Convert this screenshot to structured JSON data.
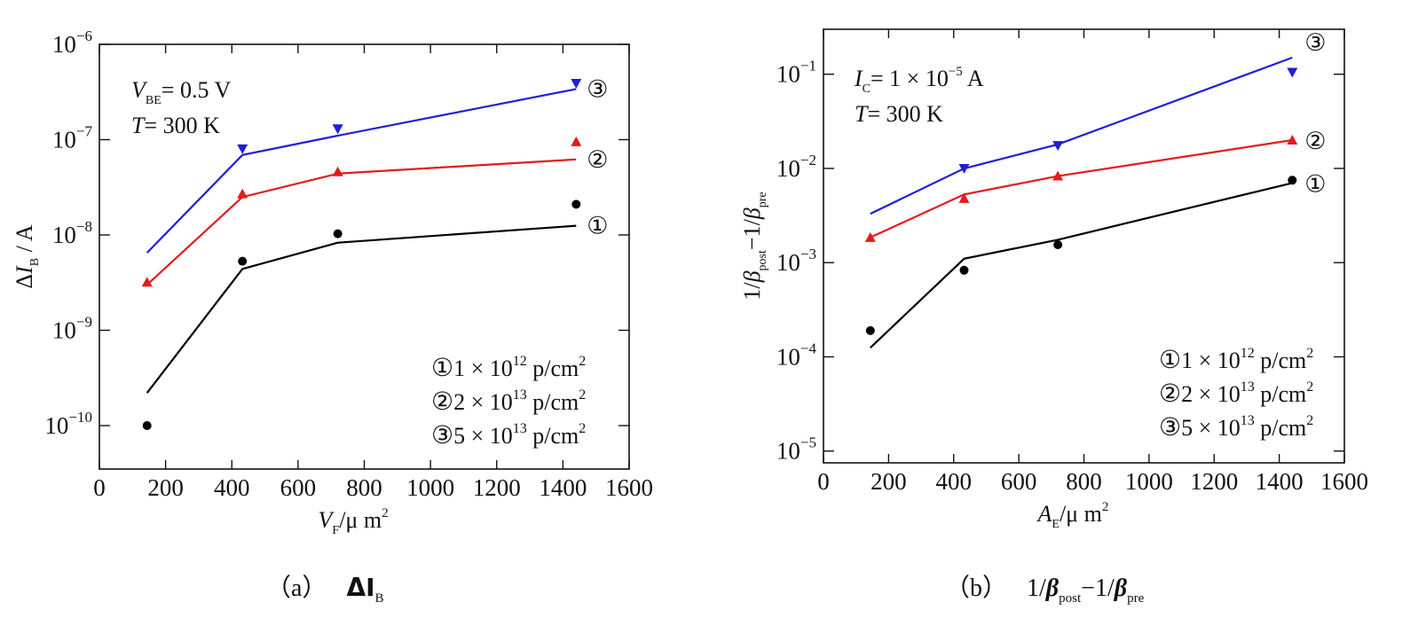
{
  "chart_data": [
    {
      "type": "scatter",
      "caption": {
        "tag": "（a）",
        "text": "ΔI",
        "sub": "B"
      },
      "xlabel": {
        "main": "V",
        "sub": "F",
        "unit": "/μ m",
        "sup": "2"
      },
      "ylabel": {
        "delta": "Δ",
        "main": "I",
        "sub": "B",
        "unit": " / A"
      },
      "x_ticks": [
        "0",
        "200",
        "400",
        "600",
        "800",
        "1000",
        "1200",
        "1400",
        "1600"
      ],
      "y_ticks": [
        {
          "base": "10",
          "exp": "−10"
        },
        {
          "base": "10",
          "exp": "−9"
        },
        {
          "base": "10",
          "exp": "−8"
        },
        {
          "base": "10",
          "exp": "−7"
        },
        {
          "base": "10",
          "exp": "−6"
        }
      ],
      "xlim": [
        0,
        1600
      ],
      "ylim": [
        3.5e-11,
        1e-06
      ],
      "yscale": "log",
      "conditions": [
        {
          "sym": "V",
          "sub": "BE",
          "rest": "= 0.5 V"
        },
        {
          "sym": "T",
          "sub": "",
          "rest": "= 300 K"
        }
      ],
      "legend": [
        {
          "marker": "①",
          "coef": "1 × 10",
          "exp": "12",
          "unit": " p/cm",
          "sup": "2"
        },
        {
          "marker": "②",
          "coef": "2 × 10",
          "exp": "13",
          "unit": " p/cm",
          "sup": "2"
        },
        {
          "marker": "③",
          "coef": "5 × 10",
          "exp": "13",
          "unit": " p/cm",
          "sup": "2"
        }
      ],
      "legend_position": "bottom-right",
      "series": [
        {
          "name": "①",
          "label": "①",
          "color": "#000000",
          "marker": "circle",
          "x": [
            144,
            432,
            720,
            1440
          ],
          "points": [
            1e-10,
            5.3e-09,
            1.03e-08,
            2.1e-08
          ],
          "fit": [
            2.2e-10,
            4.4e-09,
            8.3e-09,
            1.25e-08
          ]
        },
        {
          "name": "②",
          "label": "②",
          "color": "#e41a1c",
          "marker": "triangle-up",
          "x": [
            144,
            432,
            720,
            1440
          ],
          "points": [
            3.2e-09,
            2.7e-08,
            4.6e-08,
            9.5e-08
          ],
          "fit": [
            3e-09,
            2.5e-08,
            4.4e-08,
            6.2e-08
          ]
        },
        {
          "name": "③",
          "label": "③",
          "color": "#1f1fd6",
          "marker": "triangle-down",
          "x": [
            144,
            432,
            720,
            1440
          ],
          "points": [
            null,
            8e-08,
            1.3e-07,
            3.9e-07
          ],
          "fit": [
            6.5e-09,
            6.9e-08,
            1.1e-07,
            3.4e-07
          ]
        }
      ]
    },
    {
      "type": "scatter",
      "caption": {
        "tag": "（b）",
        "pre1": "1/",
        "beta": "β",
        "sub1": "post",
        "mid": "−1/",
        "sub2": "pre"
      },
      "xlabel": {
        "main": "A",
        "sub": "E",
        "unit": "/μ m",
        "sup": "2"
      },
      "ylabel": {
        "pre1": "1/",
        "beta": "β",
        "sub1": "post",
        "mid": "−1/",
        "sub2": "pre"
      },
      "x_ticks": [
        "0",
        "200",
        "400",
        "600",
        "800",
        "1000",
        "1200",
        "1400",
        "1600"
      ],
      "y_ticks": [
        {
          "base": "10",
          "exp": "−5"
        },
        {
          "base": "10",
          "exp": "−4"
        },
        {
          "base": "10",
          "exp": "−3"
        },
        {
          "base": "10",
          "exp": "−2"
        },
        {
          "base": "10",
          "exp": "−1"
        }
      ],
      "xlim": [
        0,
        1600
      ],
      "ylim": [
        7.5e-06,
        0.3
      ],
      "yscale": "log",
      "conditions": [
        {
          "sym": "I",
          "sub": "C",
          "rest": "= 1 × 10",
          "exp": "−5",
          "tail": " A"
        },
        {
          "sym": "T",
          "sub": "",
          "rest": "= 300 K",
          "exp": "",
          "tail": ""
        }
      ],
      "legend": [
        {
          "marker": "①",
          "coef": "1 × 10",
          "exp": "12",
          "unit": " p/cm",
          "sup": "2"
        },
        {
          "marker": "②",
          "coef": "2 × 10",
          "exp": "13",
          "unit": " p/cm",
          "sup": "2"
        },
        {
          "marker": "③",
          "coef": "5 × 10",
          "exp": "13",
          "unit": " p/cm",
          "sup": "2"
        }
      ],
      "legend_position": "bottom-right",
      "series": [
        {
          "name": "①",
          "label": "①",
          "color": "#000000",
          "marker": "circle",
          "x": [
            144,
            432,
            720,
            1440
          ],
          "points": [
            0.00019,
            0.00083,
            0.00155,
            0.0075
          ],
          "fit": [
            0.000125,
            0.0011,
            0.00175,
            0.007
          ]
        },
        {
          "name": "②",
          "label": "②",
          "color": "#e41a1c",
          "marker": "triangle-up",
          "x": [
            144,
            432,
            720,
            1440
          ],
          "points": [
            0.00185,
            0.0048,
            0.0083,
            0.02
          ],
          "fit": [
            0.00185,
            0.0053,
            0.0083,
            0.02
          ]
        },
        {
          "name": "③",
          "label": "③",
          "color": "#1f1fd6",
          "marker": "triangle-down",
          "x": [
            144,
            432,
            720,
            1440
          ],
          "points": [
            null,
            0.01,
            0.0175,
            0.105
          ],
          "fit": [
            0.0033,
            0.01,
            0.018,
            0.15
          ]
        }
      ]
    }
  ]
}
